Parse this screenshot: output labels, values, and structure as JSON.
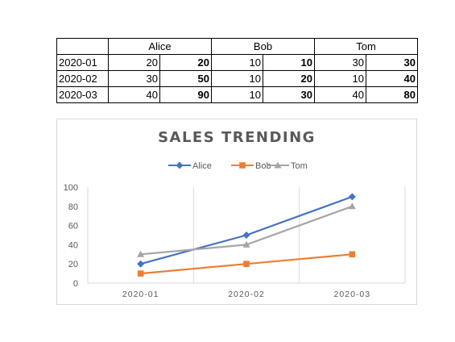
{
  "table": {
    "headers": [
      "",
      "Alice",
      "Bob",
      "Tom"
    ],
    "rows": [
      {
        "label": "2020-01",
        "cells": [
          "20",
          "20",
          "10",
          "10",
          "30",
          "30"
        ]
      },
      {
        "label": "2020-02",
        "cells": [
          "30",
          "50",
          "10",
          "20",
          "10",
          "40"
        ]
      },
      {
        "label": "2020-03",
        "cells": [
          "40",
          "90",
          "10",
          "30",
          "40",
          "80"
        ]
      }
    ]
  },
  "colors": {
    "Alice": "#4472c4",
    "Bob": "#ed7d31",
    "Tom": "#a5a5a5"
  },
  "chart_data": {
    "type": "line",
    "title": "SALES TRENDING",
    "x": [
      "2020-01",
      "2020-02",
      "2020-03"
    ],
    "yticks": [
      "0",
      "20",
      "40",
      "60",
      "80",
      "100"
    ],
    "ylim": [
      0,
      100
    ],
    "grid": "vertical",
    "legend_position": "top",
    "series": [
      {
        "name": "Alice",
        "values": [
          20,
          50,
          90
        ],
        "marker": "diamond"
      },
      {
        "name": "Bob",
        "values": [
          10,
          20,
          30
        ],
        "marker": "square"
      },
      {
        "name": "Tom",
        "values": [
          30,
          40,
          80
        ],
        "marker": "triangle"
      }
    ]
  }
}
